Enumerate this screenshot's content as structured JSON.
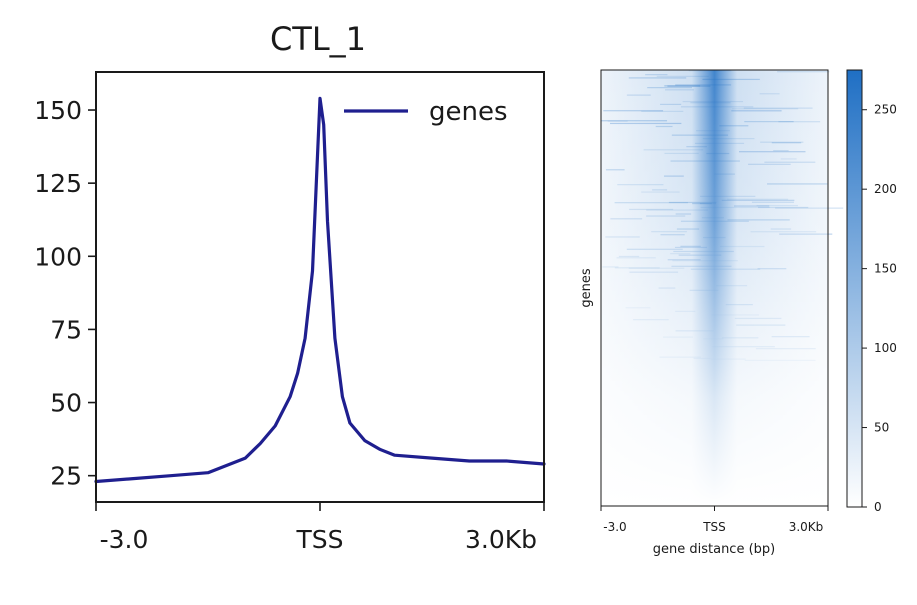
{
  "chart_data": [
    {
      "type": "line",
      "title": "CTL_1",
      "xlabel": "",
      "ylabel": "",
      "x_tick_labels": [
        "-3.0",
        "TSS",
        "3.0Kb"
      ],
      "x": [
        -3.0,
        -2.5,
        -2.0,
        -1.5,
        -1.0,
        -0.8,
        -0.6,
        -0.4,
        -0.3,
        -0.2,
        -0.1,
        -0.05,
        0.0,
        0.05,
        0.1,
        0.2,
        0.3,
        0.4,
        0.6,
        0.8,
        1.0,
        1.5,
        2.0,
        2.5,
        3.0
      ],
      "xlim": [
        -3.0,
        3.0
      ],
      "ylim": [
        16,
        163
      ],
      "y_ticks": [
        25,
        50,
        75,
        100,
        125,
        150
      ],
      "series": [
        {
          "name": "genes",
          "color": "#1f1f8f",
          "values": [
            23,
            24,
            25,
            26,
            31,
            36,
            42,
            52,
            60,
            72,
            95,
            125,
            154,
            145,
            112,
            72,
            52,
            43,
            37,
            34,
            32,
            31,
            30,
            30,
            29
          ]
        }
      ],
      "legend": {
        "position": "top-right",
        "entries": [
          "genes"
        ]
      }
    },
    {
      "type": "heatmap",
      "ylabel": "genes",
      "xlabel": "gene distance (bp)",
      "x_tick_labels": [
        "-3.0",
        "TSS",
        "3.0Kb"
      ],
      "colorbar": {
        "min": 0,
        "max": 275,
        "ticks": [
          0,
          50,
          100,
          150,
          200,
          250
        ],
        "color_low": "#ffffff",
        "color_high": "#1f6fc4"
      },
      "description_values": {
        "center_max": 250,
        "flank_top": 90,
        "flank_bottom": 5
      }
    }
  ]
}
